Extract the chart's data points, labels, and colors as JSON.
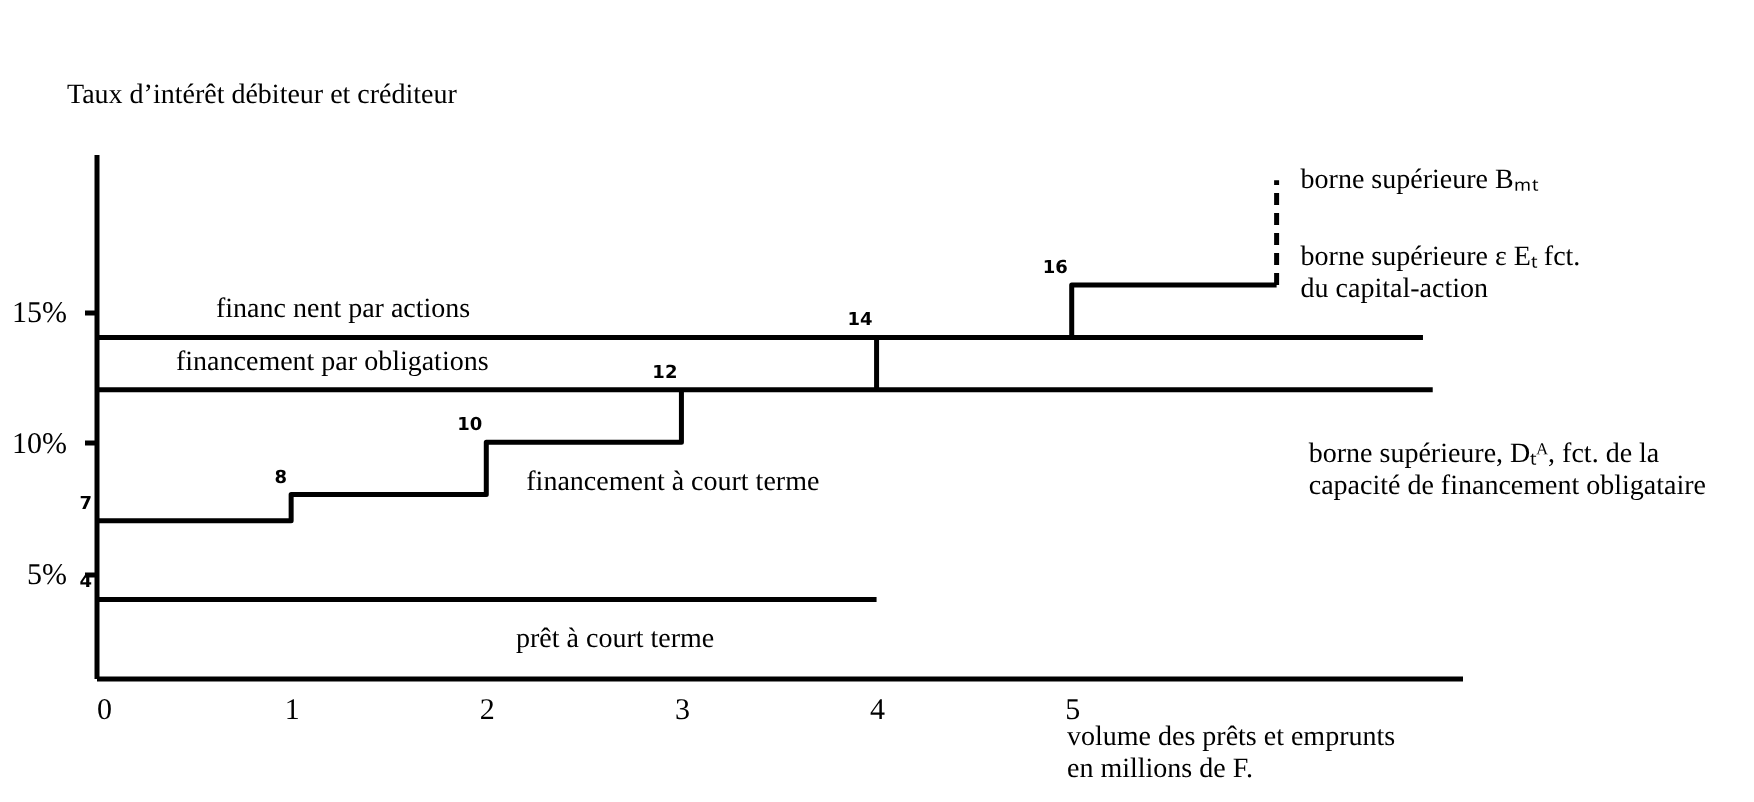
{
  "chart_data": {
    "type": "line",
    "ylabel": "Taux d’intérêt débiteur et créditeur",
    "xlabel": "volume des prêts et emprunts\nen millions de F.",
    "xlim": [
      0,
      7
    ],
    "xticks": [
      0,
      1,
      2,
      3,
      4,
      5
    ],
    "ylim": [
      1,
      21
    ],
    "yticks": [
      {
        "value": 5,
        "label": "5%"
      },
      {
        "value": 10,
        "label": "10%"
      },
      {
        "value": 15,
        "label": "15%"
      }
    ],
    "series": [
      {
        "type": "line",
        "name": "prêt à court terme",
        "color": "#000000",
        "x": [
          0,
          4
        ],
        "values": [
          4,
          4
        ],
        "value_labels": [
          "4",
          null
        ]
      },
      {
        "type": "step",
        "name": "financement à court terme",
        "color": "#000000",
        "x": [
          0,
          1,
          2,
          3
        ],
        "values": [
          7,
          8,
          10,
          12
        ],
        "value_labels": [
          "7",
          "8",
          "10",
          "12"
        ]
      },
      {
        "type": "line",
        "name": "financement par obligations",
        "color": "#000000",
        "x": [
          0,
          6.85
        ],
        "values": [
          12,
          12
        ],
        "value_labels": [
          null,
          null
        ]
      },
      {
        "type": "line",
        "name": "financ nent par actions",
        "color": "#000000",
        "x": [
          0,
          6.8
        ],
        "values": [
          14,
          14
        ],
        "value_labels": [
          null,
          null
        ]
      },
      {
        "type": "line",
        "color": "#000000",
        "x": [
          4,
          4
        ],
        "values": [
          12,
          14
        ],
        "value_labels": [
          null,
          "14"
        ]
      },
      {
        "type": "line",
        "color": "#000000",
        "x": [
          5,
          5,
          6.05
        ],
        "values": [
          14,
          16,
          16
        ],
        "value_labels": [
          null,
          "16",
          null
        ]
      },
      {
        "type": "line",
        "color": "#000000",
        "x": [
          6.05,
          6.05
        ],
        "values": [
          16,
          20
        ],
        "value_labels": [
          null,
          null
        ],
        "line_style": "dashed"
      }
    ],
    "annotations": [
      "borne supérieure Bₘₜ",
      "borne supérieure  ε Eₜ fct.\ndu capital-action",
      "borne supérieure, Dₜᴬ, fct. de la\ncapacité de financement obligataire"
    ]
  }
}
